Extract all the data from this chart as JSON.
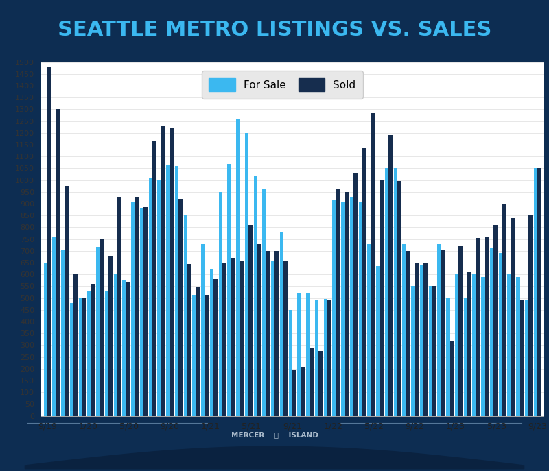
{
  "title": "SEATTLE METRO LISTINGS VS. SALES",
  "title_color": "#3bb8f0",
  "title_bg_color": "#0d2d52",
  "chart_bg_color": "#ffffff",
  "footer_bg_color": "#0d2d52",
  "bar_color_sale": "#3bb8f0",
  "bar_color_sold": "#162d4e",
  "legend_labels": [
    "For Sale",
    "Sold"
  ],
  "x_labels": [
    "9/19",
    "1/20",
    "5/20",
    "9/20",
    "1/21",
    "5/21",
    "9/21",
    "1/22",
    "5/22",
    "9/22",
    "1/23",
    "5/23",
    "9/23"
  ],
  "yticks": [
    0,
    50,
    100,
    150,
    200,
    250,
    300,
    350,
    400,
    450,
    500,
    550,
    600,
    650,
    700,
    750,
    800,
    850,
    900,
    950,
    1000,
    1050,
    1100,
    1150,
    1200,
    1250,
    1300,
    1350,
    1400,
    1450,
    1500
  ],
  "ymax": 1500,
  "for_sale": [
    650,
    760,
    705,
    480,
    500,
    530,
    715,
    530,
    605,
    575,
    910,
    880,
    1010,
    1000,
    1065,
    1060,
    855,
    510,
    730,
    620,
    950,
    1070,
    1260,
    1200,
    1020,
    960,
    660,
    780,
    450,
    520,
    520,
    490,
    495,
    915,
    910,
    925,
    910,
    730,
    635,
    1050,
    1050,
    730,
    550,
    640,
    550,
    730,
    500,
    600,
    500,
    600,
    590,
    710,
    690,
    600,
    590,
    490,
    1050
  ],
  "sold": [
    1480,
    1300,
    975,
    600,
    500,
    560,
    750,
    680,
    930,
    570,
    930,
    885,
    1165,
    1230,
    1220,
    920,
    645,
    545,
    510,
    580,
    650,
    670,
    660,
    810,
    730,
    700,
    700,
    660,
    195,
    205,
    290,
    275,
    490,
    960,
    950,
    1030,
    1135,
    1285,
    1000,
    1190,
    995,
    700,
    650,
    650,
    550,
    705,
    315,
    720,
    610,
    755,
    760,
    810,
    900,
    840,
    490,
    850,
    1050
  ],
  "footer_text": "MERCER",
  "footer_text2": "ISLAND",
  "title_fontsize": 22,
  "tick_fontsize": 8,
  "xlabel_fontsize": 9
}
